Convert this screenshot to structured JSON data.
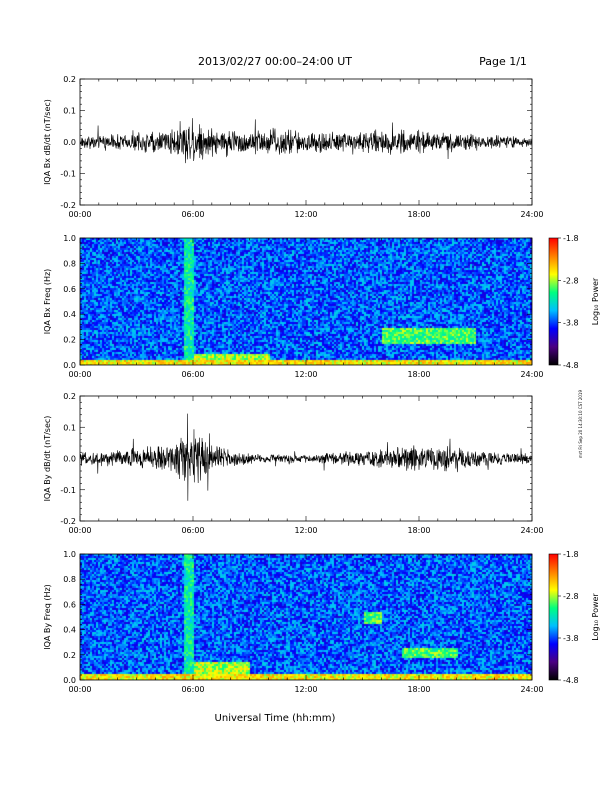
{
  "header": {
    "title": "2013/02/27  00:00–24:00 UT",
    "page": "Page 1/1"
  },
  "xlabel": "Universal Time (hh:mm)",
  "side_note": "mrt Fri Sep 20 14:30:10 CST 2019",
  "colormap_stops": [
    "#000000",
    "#4b0082",
    "#0000ff",
    "#00bfff",
    "#00ff80",
    "#ffff00",
    "#ff8000",
    "#ff0000"
  ],
  "trace_color": "#000000",
  "chart_data": [
    {
      "type": "line",
      "title": "",
      "xlabel": "",
      "ylabel": "IQA Bx dB/dt (nT/sec)",
      "xlim": [
        0,
        24
      ],
      "ylim": [
        -0.2,
        0.2
      ],
      "xticks": [
        "00:00",
        "06:00",
        "12:00",
        "18:00",
        "24:00"
      ],
      "yticks": [
        "-0.2",
        "-0.1",
        "0.0",
        "0.1",
        "0.2"
      ],
      "grid": false,
      "envelope": {
        "x": [
          0,
          1,
          2,
          3,
          4,
          5,
          5.5,
          6,
          6.5,
          7,
          8,
          9,
          10,
          11,
          12,
          13,
          14,
          15,
          16,
          17,
          18,
          19,
          20,
          21,
          22,
          23,
          24
        ],
        "y": [
          0.02,
          0.025,
          0.03,
          0.035,
          0.04,
          0.05,
          0.08,
          0.09,
          0.07,
          0.05,
          0.045,
          0.045,
          0.05,
          0.05,
          0.04,
          0.04,
          0.04,
          0.04,
          0.045,
          0.045,
          0.04,
          0.035,
          0.03,
          0.03,
          0.025,
          0.02,
          0.02
        ]
      }
    },
    {
      "type": "heatmap",
      "title": "",
      "ylabel": "IQA Bx Freq (Hz)",
      "xlim": [
        0,
        24
      ],
      "ylim": [
        0.0,
        1.0
      ],
      "xticks": [
        "00:00",
        "06:00",
        "12:00",
        "18:00",
        "24:00"
      ],
      "yticks": [
        "0.0",
        "0.2",
        "0.4",
        "0.6",
        "0.8",
        "1.0"
      ],
      "colorbar": {
        "label": "Log₁₀ Power",
        "range": [
          -4.8,
          -1.8
        ],
        "ticks": [
          "-1.8",
          "-2.8",
          "-3.8",
          "-4.8"
        ]
      },
      "features": [
        {
          "desc": "broadband low-frequency enhancement",
          "x": [
            0,
            24
          ],
          "y": [
            0.0,
            0.05
          ],
          "value": -2.6
        },
        {
          "desc": "impulsive event",
          "x": [
            5.5,
            6.0
          ],
          "y": [
            0.0,
            1.0
          ],
          "value": -3.2
        },
        {
          "desc": "elevated low-frequency power",
          "x": [
            6,
            10
          ],
          "y": [
            0.0,
            0.1
          ],
          "value": -2.8
        },
        {
          "desc": "narrowband emission",
          "x": [
            16,
            21
          ],
          "y": [
            0.18,
            0.3
          ],
          "value": -3.0
        }
      ]
    },
    {
      "type": "line",
      "title": "",
      "xlabel": "",
      "ylabel": "IQA By dB/dt (nT/sec)",
      "xlim": [
        0,
        24
      ],
      "ylim": [
        -0.2,
        0.2
      ],
      "xticks": [
        "00:00",
        "06:00",
        "12:00",
        "18:00",
        "24:00"
      ],
      "yticks": [
        "-0.2",
        "-0.1",
        "0.0",
        "0.1",
        "0.2"
      ],
      "grid": false,
      "envelope": {
        "x": [
          0,
          1,
          2,
          3,
          4,
          5,
          5.5,
          6,
          6.5,
          7,
          8,
          9,
          10,
          11,
          12,
          13,
          14,
          15,
          16,
          17,
          18,
          19,
          20,
          21,
          22,
          23,
          24
        ],
        "y": [
          0.02,
          0.025,
          0.03,
          0.04,
          0.045,
          0.06,
          0.09,
          0.1,
          0.08,
          0.05,
          0.035,
          0.02,
          0.015,
          0.015,
          0.015,
          0.02,
          0.025,
          0.03,
          0.035,
          0.04,
          0.045,
          0.05,
          0.045,
          0.03,
          0.025,
          0.02,
          0.02
        ]
      }
    },
    {
      "type": "heatmap",
      "title": "",
      "ylabel": "IQA By Freq (Hz)",
      "xlim": [
        0,
        24
      ],
      "ylim": [
        0.0,
        1.0
      ],
      "xticks": [
        "00:00",
        "06:00",
        "12:00",
        "18:00",
        "24:00"
      ],
      "yticks": [
        "0.0",
        "0.2",
        "0.4",
        "0.6",
        "0.8",
        "1.0"
      ],
      "colorbar": {
        "label": "Log₁₀ Power",
        "range": [
          -4.8,
          -1.8
        ],
        "ticks": [
          "-1.8",
          "-2.8",
          "-3.8",
          "-4.8"
        ]
      },
      "features": [
        {
          "desc": "broadband low-frequency enhancement",
          "x": [
            0,
            24
          ],
          "y": [
            0.0,
            0.05
          ],
          "value": -2.6
        },
        {
          "desc": "impulsive event",
          "x": [
            5.5,
            6.0
          ],
          "y": [
            0.0,
            1.0
          ],
          "value": -3.2
        },
        {
          "desc": "elevated low-frequency power",
          "x": [
            6,
            9
          ],
          "y": [
            0.0,
            0.15
          ],
          "value": -2.8
        },
        {
          "desc": "narrowband emission",
          "x": [
            15,
            16
          ],
          "y": [
            0.45,
            0.55
          ],
          "value": -3.0
        },
        {
          "desc": "narrowband emission",
          "x": [
            17,
            20
          ],
          "y": [
            0.18,
            0.26
          ],
          "value": -3.0
        }
      ]
    }
  ]
}
